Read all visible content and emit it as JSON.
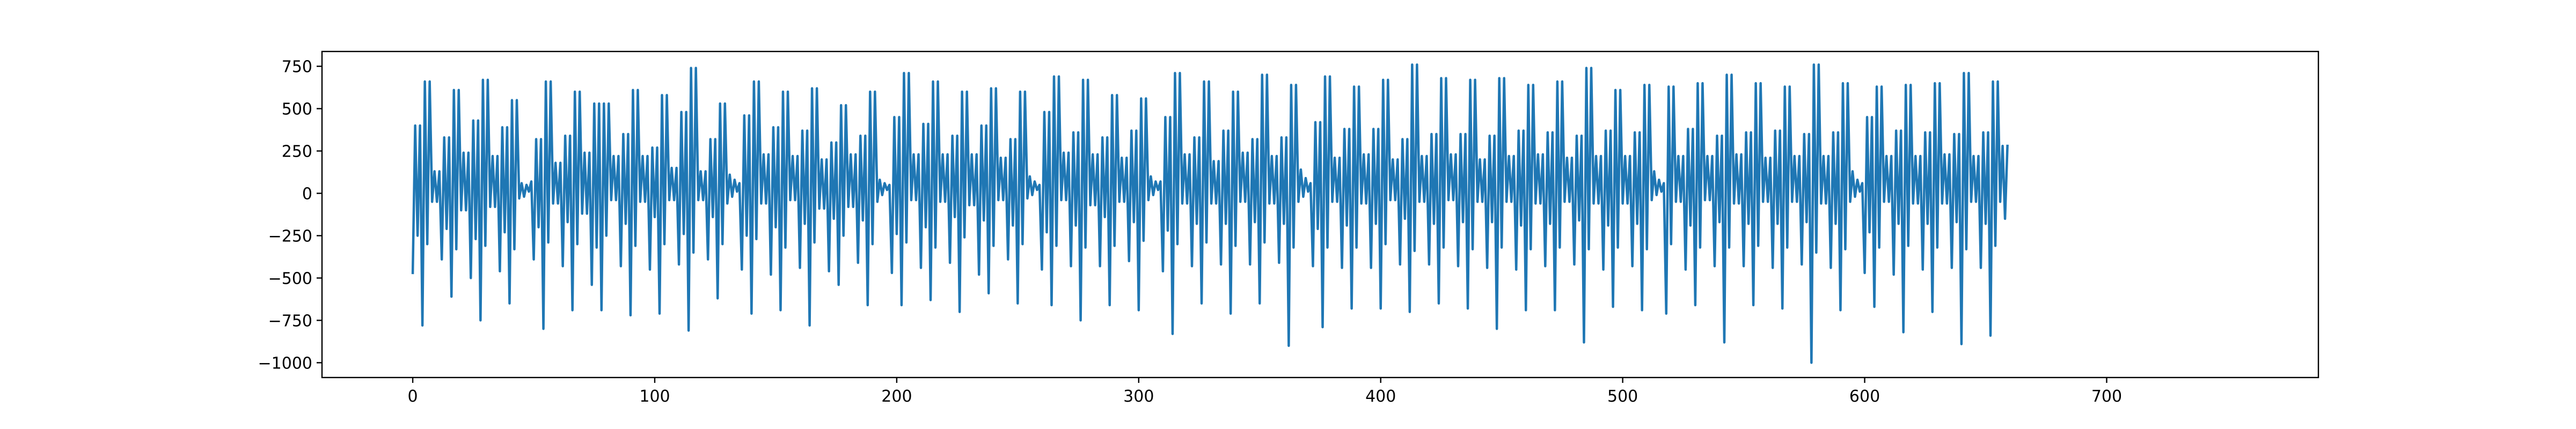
{
  "chart_data": {
    "type": "line",
    "title": "",
    "xlabel": "",
    "ylabel": "",
    "xlim": [
      -37.5,
      787.5
    ],
    "ylim": [
      -1087.5,
      837.5
    ],
    "xticks": [
      0,
      100,
      200,
      300,
      400,
      500,
      600,
      700
    ],
    "yticks": [
      -1000,
      -750,
      -500,
      -250,
      0,
      250,
      500,
      750
    ],
    "xtick_labels": [
      "0",
      "100",
      "200",
      "300",
      "400",
      "500",
      "600",
      "700"
    ],
    "ytick_labels": [
      "−1000",
      "−750",
      "−500",
      "−250",
      "0",
      "250",
      "500",
      "750"
    ],
    "grid": false,
    "legend": "none",
    "series": [
      {
        "color": "#1f77b4",
        "x_start": 0,
        "x_step": 1,
        "values": [
          -470,
          400,
          -250,
          400,
          -780,
          660,
          -300,
          660,
          -50,
          130,
          -50,
          130,
          -390,
          330,
          -210,
          330,
          -610,
          610,
          -330,
          610,
          -100,
          240,
          -100,
          240,
          -500,
          430,
          -270,
          430,
          -750,
          670,
          -310,
          670,
          -80,
          220,
          -80,
          220,
          -460,
          390,
          -230,
          390,
          -650,
          550,
          -330,
          550,
          -30,
          60,
          -20,
          50,
          10,
          70,
          -390,
          320,
          -200,
          320,
          -800,
          660,
          -290,
          660,
          -60,
          180,
          -60,
          180,
          -430,
          340,
          -170,
          340,
          -690,
          600,
          -300,
          600,
          -120,
          240,
          -120,
          240,
          -540,
          530,
          -320,
          530,
          -690,
          530,
          -250,
          530,
          -40,
          220,
          -40,
          220,
          -430,
          350,
          -180,
          350,
          -720,
          610,
          -310,
          610,
          -50,
          220,
          -50,
          220,
          -450,
          270,
          -140,
          270,
          -710,
          580,
          -300,
          580,
          -40,
          150,
          -40,
          150,
          -420,
          480,
          -240,
          480,
          -810,
          740,
          -350,
          740,
          -40,
          130,
          -40,
          130,
          -390,
          320,
          -140,
          320,
          -620,
          530,
          -300,
          530,
          -60,
          110,
          -20,
          80,
          10,
          60,
          -450,
          460,
          -250,
          460,
          -710,
          660,
          -270,
          660,
          -60,
          230,
          -60,
          230,
          -480,
          390,
          -200,
          390,
          -690,
          600,
          -320,
          600,
          -40,
          220,
          -40,
          220,
          -440,
          370,
          -180,
          370,
          -780,
          620,
          -290,
          620,
          -90,
          200,
          -90,
          200,
          -460,
          300,
          -150,
          300,
          -540,
          520,
          -250,
          520,
          -80,
          230,
          -80,
          230,
          -410,
          340,
          -160,
          340,
          -660,
          600,
          -300,
          600,
          -50,
          80,
          -10,
          60,
          20,
          50,
          -470,
          450,
          -240,
          450,
          -660,
          710,
          -290,
          710,
          -40,
          230,
          -40,
          230,
          -440,
          410,
          -200,
          410,
          -630,
          660,
          -320,
          660,
          -50,
          230,
          -50,
          230,
          -410,
          340,
          -140,
          340,
          -700,
          600,
          -260,
          600,
          -70,
          230,
          -70,
          230,
          -480,
          400,
          -160,
          400,
          -590,
          620,
          -310,
          620,
          -40,
          210,
          -40,
          210,
          -390,
          320,
          -190,
          320,
          -650,
          600,
          -300,
          600,
          -30,
          100,
          -10,
          70,
          20,
          50,
          -450,
          480,
          -230,
          480,
          -660,
          690,
          -310,
          690,
          -40,
          240,
          -40,
          240,
          -430,
          360,
          -190,
          360,
          -750,
          670,
          -320,
          670,
          -70,
          230,
          -70,
          230,
          -430,
          330,
          -140,
          330,
          -660,
          580,
          -310,
          580,
          -50,
          210,
          -50,
          210,
          -400,
          370,
          -170,
          370,
          -690,
          560,
          -280,
          560,
          -40,
          100,
          -10,
          70,
          20,
          70,
          -460,
          450,
          -220,
          450,
          -830,
          710,
          -300,
          710,
          -60,
          230,
          -60,
          230,
          -430,
          330,
          -180,
          330,
          -650,
          660,
          -290,
          660,
          -60,
          190,
          -60,
          190,
          -420,
          370,
          -180,
          370,
          -710,
          600,
          -310,
          600,
          -50,
          240,
          -50,
          240,
          -420,
          320,
          -170,
          320,
          -650,
          700,
          -290,
          700,
          -60,
          220,
          -60,
          220,
          -410,
          330,
          -180,
          330,
          -900,
          640,
          -320,
          640,
          -50,
          140,
          -20,
          90,
          10,
          60,
          -430,
          420,
          -210,
          420,
          -790,
          690,
          -320,
          690,
          -50,
          210,
          -50,
          210,
          -440,
          380,
          -190,
          380,
          -680,
          630,
          -320,
          630,
          -60,
          230,
          -60,
          230,
          -440,
          380,
          -180,
          380,
          -680,
          670,
          -300,
          670,
          -40,
          200,
          -40,
          200,
          -420,
          320,
          -150,
          320,
          -700,
          760,
          -340,
          760,
          -50,
          220,
          -50,
          220,
          -420,
          350,
          -180,
          350,
          -650,
          680,
          -320,
          680,
          -40,
          230,
          -40,
          230,
          -430,
          350,
          -170,
          350,
          -680,
          670,
          -330,
          670,
          -50,
          200,
          -50,
          200,
          -440,
          340,
          -170,
          340,
          -800,
          680,
          -320,
          680,
          -50,
          220,
          -50,
          220,
          -450,
          370,
          -190,
          370,
          -690,
          640,
          -330,
          640,
          -60,
          230,
          -60,
          230,
          -430,
          360,
          -180,
          360,
          -690,
          660,
          -320,
          660,
          -50,
          210,
          -50,
          210,
          -420,
          340,
          -160,
          340,
          -880,
          740,
          -330,
          740,
          -60,
          220,
          -60,
          220,
          -450,
          370,
          -190,
          370,
          -670,
          610,
          -320,
          610,
          -60,
          220,
          -60,
          220,
          -430,
          360,
          -180,
          360,
          -690,
          640,
          -330,
          640,
          -40,
          130,
          -10,
          80,
          10,
          60,
          -710,
          630,
          -300,
          630,
          -50,
          220,
          -50,
          220,
          -450,
          380,
          -190,
          380,
          -660,
          650,
          -320,
          650,
          -40,
          220,
          -40,
          220,
          -430,
          340,
          -170,
          340,
          -880,
          700,
          -320,
          700,
          -60,
          230,
          -60,
          230,
          -430,
          360,
          -180,
          360,
          -660,
          650,
          -310,
          650,
          -50,
          210,
          -50,
          210,
          -440,
          370,
          -180,
          370,
          -680,
          630,
          -320,
          630,
          -50,
          220,
          -50,
          220,
          -420,
          350,
          -170,
          350,
          -1000,
          760,
          -350,
          760,
          -60,
          220,
          -60,
          220,
          -440,
          360,
          -180,
          360,
          -690,
          650,
          -330,
          650,
          -50,
          130,
          -20,
          80,
          10,
          60,
          -470,
          450,
          -230,
          450,
          -670,
          630,
          -320,
          630,
          -50,
          220,
          -50,
          220,
          -480,
          370,
          -180,
          370,
          -820,
          640,
          -310,
          640,
          -60,
          220,
          -60,
          220,
          -450,
          360,
          -180,
          360,
          -700,
          650,
          -320,
          650,
          -60,
          230,
          -60,
          230,
          -440,
          350,
          -170,
          350,
          -890,
          710,
          -330,
          710,
          -50,
          220,
          -50,
          220,
          -440,
          360,
          -180,
          360,
          -840,
          660,
          -310,
          660,
          -50,
          280,
          -150,
          280
        ]
      }
    ]
  }
}
